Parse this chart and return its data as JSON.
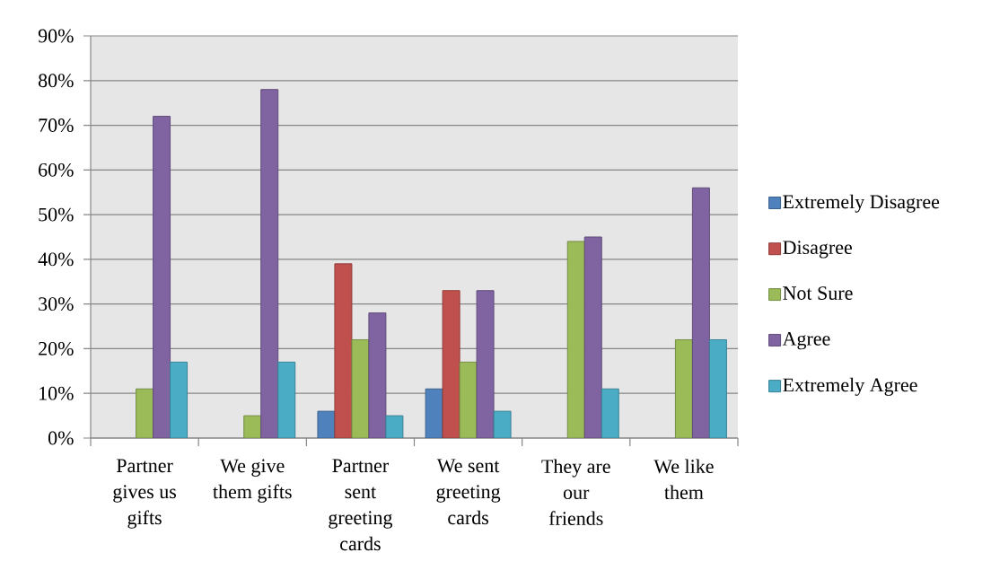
{
  "chart_data": {
    "type": "bar",
    "categories": [
      "Partner gives us gifts",
      "We give them gifts",
      "Partner sent greeting cards",
      "We sent greeting cards",
      "They are our friends",
      "We like them"
    ],
    "series": [
      {
        "name": "Extremely Disagree",
        "color": "#4f81bd",
        "values": [
          null,
          null,
          6,
          11,
          null,
          null
        ]
      },
      {
        "name": "Disagree",
        "color": "#c0504d",
        "values": [
          null,
          null,
          39,
          33,
          null,
          null
        ]
      },
      {
        "name": "Not Sure",
        "color": "#9bbb59",
        "values": [
          11,
          5,
          22,
          17,
          44,
          22
        ]
      },
      {
        "name": "Agree",
        "color": "#8064a2",
        "values": [
          72,
          78,
          28,
          33,
          45,
          56
        ]
      },
      {
        "name": "Extremely Agree",
        "color": "#4bacc6",
        "values": [
          17,
          17,
          5,
          6,
          11,
          22
        ]
      }
    ],
    "ylim": [
      0,
      90
    ],
    "yticks": [
      {
        "value": 0,
        "label": "0%"
      },
      {
        "value": 10,
        "label": "10%"
      },
      {
        "value": 20,
        "label": "20%"
      },
      {
        "value": 30,
        "label": "30%"
      },
      {
        "value": 40,
        "label": "40%"
      },
      {
        "value": 50,
        "label": "50%"
      },
      {
        "value": 60,
        "label": "60%"
      },
      {
        "value": 70,
        "label": "70%"
      },
      {
        "value": 80,
        "label": "80%"
      },
      {
        "value": 90,
        "label": "90%"
      }
    ],
    "grid": "y",
    "legend": "right"
  }
}
